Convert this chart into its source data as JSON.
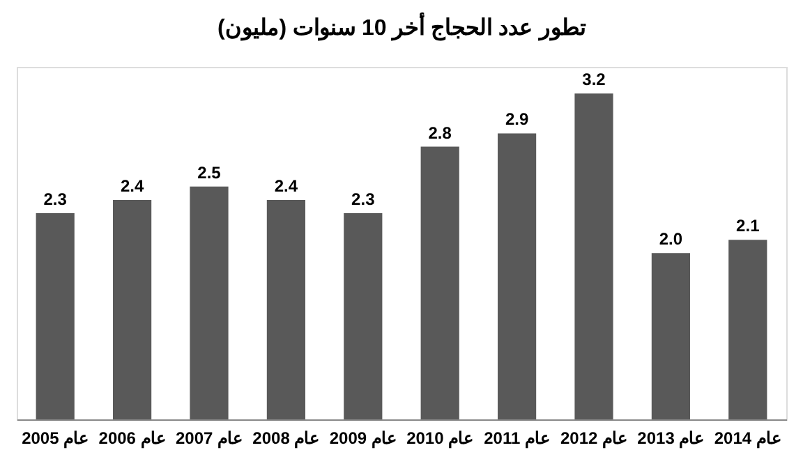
{
  "chart_data": {
    "type": "bar",
    "title": "تطور عدد الحجاج أخر 10 سنوات (مليون)",
    "categories": [
      "عام 2005",
      "عام 2006",
      "عام 2007",
      "عام 2008",
      "عام 2009",
      "عام 2010",
      "عام 2011",
      "عام 2012",
      "عام 2013",
      "عام 2014"
    ],
    "values": [
      2.3,
      2.4,
      2.5,
      2.4,
      2.3,
      2.8,
      2.9,
      3.2,
      2.0,
      2.1
    ],
    "value_labels": [
      "2.3",
      "2.4",
      "2.5",
      "2.4",
      "2.3",
      "2.8",
      "2.9",
      "3.2",
      "2.0",
      "2.1"
    ],
    "color": "#595959",
    "ylim": [
      0.75,
      3.4
    ],
    "tick_labels": "x",
    "grid": false
  }
}
